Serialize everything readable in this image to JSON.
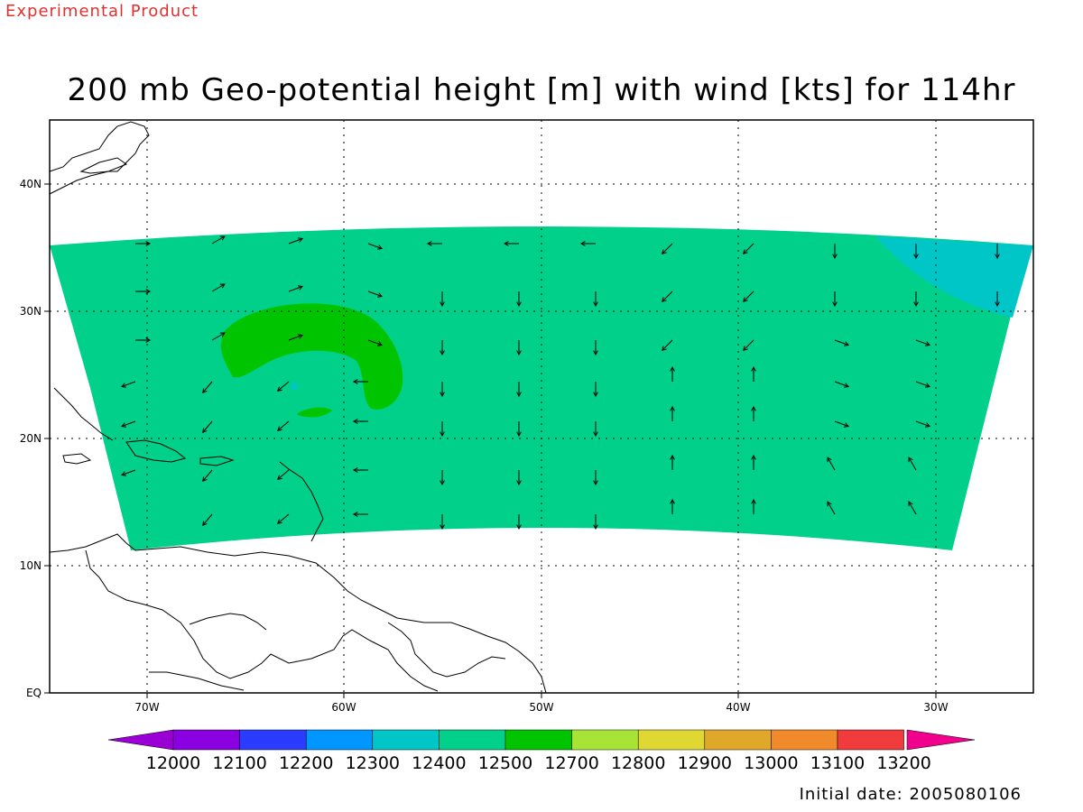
{
  "experimental_label": "Experimental Product",
  "title": "200 mb Geo-potential height [m] with wind [kts] for 114hr",
  "initial_date": "Initial date: 2005080106",
  "map": {
    "lat_labels": [
      "EQ",
      "10N",
      "20N",
      "30N",
      "40N"
    ],
    "lon_labels": [
      "70W",
      "60W",
      "50W",
      "40W",
      "30W"
    ],
    "colors": {
      "band_12400": "#00d08a",
      "contour_12500": "#00c400",
      "low_12300": "#00c6c8",
      "grid": "#000000"
    },
    "height_field": [
      {
        "range": "12400-12500",
        "color": "#00d08a",
        "description": "main band"
      },
      {
        "range": "12500-12700",
        "color": "#00c400",
        "description": "anticyclonic ring"
      },
      {
        "range": "12300-12400",
        "color": "#00c6c8",
        "description": "northeast corner"
      }
    ]
  },
  "legend": {
    "colors": [
      "#9a00d6",
      "#8a00e0",
      "#2a3cff",
      "#0096ff",
      "#00c6c8",
      "#00d08a",
      "#00c400",
      "#a8e436",
      "#e0d832",
      "#e0a82a",
      "#f08a2a",
      "#f03c3c",
      "#f0008c"
    ],
    "labels": [
      "12000",
      "12100",
      "12200",
      "12300",
      "12400",
      "12500",
      "12700",
      "12800",
      "12900",
      "13000",
      "13100",
      "13200"
    ]
  }
}
